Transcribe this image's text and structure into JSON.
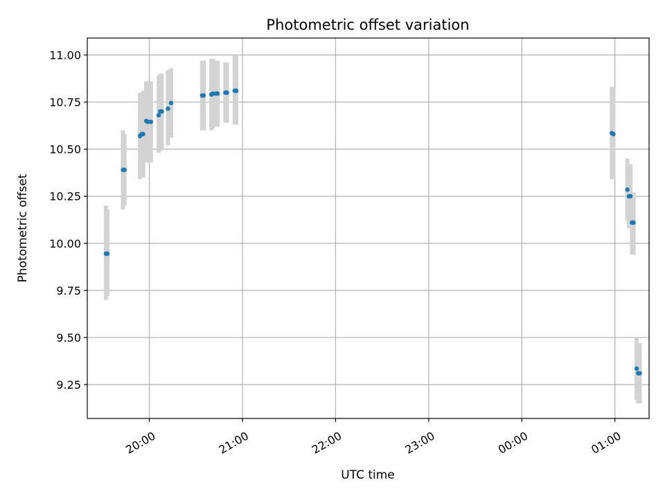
{
  "chart_data": {
    "type": "scatter",
    "title": "Photometric offset variation",
    "xlabel": "UTC time",
    "ylabel": "Photometric offset",
    "grid": true,
    "x_is_time": true,
    "xlim": [
      "19:20",
      "01:22"
    ],
    "ylim": [
      9.07,
      11.09
    ],
    "x_ticks": [
      {
        "t": "20:00",
        "label": "20:00"
      },
      {
        "t": "21:00",
        "label": "21:00"
      },
      {
        "t": "22:00",
        "label": "22:00"
      },
      {
        "t": "23:00",
        "label": "23:00"
      },
      {
        "t": "00:00",
        "label": "00:00"
      },
      {
        "t": "01:00",
        "label": "01:00"
      }
    ],
    "y_ticks": [
      {
        "value": 9.25,
        "label": "9.25"
      },
      {
        "value": 9.5,
        "label": "9.50"
      },
      {
        "value": 9.75,
        "label": "9.75"
      },
      {
        "value": 10.0,
        "label": "10.00"
      },
      {
        "value": 10.25,
        "label": "10.25"
      },
      {
        "value": 10.5,
        "label": "10.50"
      },
      {
        "value": 10.75,
        "label": "10.75"
      },
      {
        "value": 11.0,
        "label": "11.00"
      }
    ],
    "colors": {
      "points": "#1f77b4",
      "errorbars": "#d3d3d3",
      "grid": "#b0b0b0"
    },
    "points": [
      {
        "t": "19:32",
        "y": 9.945,
        "ylo": 9.7,
        "yhi": 10.2
      },
      {
        "t": "19:33",
        "y": 9.945,
        "ylo": 9.72,
        "yhi": 10.18
      },
      {
        "t": "19:43",
        "y": 10.39,
        "ylo": 10.18,
        "yhi": 10.6
      },
      {
        "t": "19:44",
        "y": 10.39,
        "ylo": 10.2,
        "yhi": 10.58
      },
      {
        "t": "19:54",
        "y": 10.57,
        "ylo": 10.34,
        "yhi": 10.8
      },
      {
        "t": "19:55",
        "y": 10.58,
        "ylo": 10.35,
        "yhi": 10.8
      },
      {
        "t": "19:56",
        "y": 10.58,
        "ylo": 10.35,
        "yhi": 10.81
      },
      {
        "t": "19:58",
        "y": 10.65,
        "ylo": 10.43,
        "yhi": 10.86
      },
      {
        "t": "19:59",
        "y": 10.645,
        "ylo": 10.43,
        "yhi": 10.86
      },
      {
        "t": "20:01",
        "y": 10.645,
        "ylo": 10.43,
        "yhi": 10.86
      },
      {
        "t": "20:06",
        "y": 10.68,
        "ylo": 10.48,
        "yhi": 10.89
      },
      {
        "t": "20:07",
        "y": 10.7,
        "ylo": 10.49,
        "yhi": 10.9
      },
      {
        "t": "20:08",
        "y": 10.7,
        "ylo": 10.5,
        "yhi": 10.9
      },
      {
        "t": "20:12",
        "y": 10.715,
        "ylo": 10.52,
        "yhi": 10.92
      },
      {
        "t": "20:14",
        "y": 10.745,
        "ylo": 10.56,
        "yhi": 10.93
      },
      {
        "t": "20:34",
        "y": 10.785,
        "ylo": 10.6,
        "yhi": 10.97
      },
      {
        "t": "20:35",
        "y": 10.785,
        "ylo": 10.6,
        "yhi": 10.97
      },
      {
        "t": "20:40",
        "y": 10.79,
        "ylo": 10.6,
        "yhi": 10.98
      },
      {
        "t": "20:41",
        "y": 10.795,
        "ylo": 10.61,
        "yhi": 10.98
      },
      {
        "t": "20:43",
        "y": 10.795,
        "ylo": 10.62,
        "yhi": 10.97
      },
      {
        "t": "20:44",
        "y": 10.795,
        "ylo": 10.62,
        "yhi": 10.97
      },
      {
        "t": "20:49",
        "y": 10.8,
        "ylo": 10.64,
        "yhi": 10.96
      },
      {
        "t": "20:50",
        "y": 10.8,
        "ylo": 10.64,
        "yhi": 10.96
      },
      {
        "t": "20:55",
        "y": 10.81,
        "ylo": 10.63,
        "yhi": 11.0
      },
      {
        "t": "20:56",
        "y": 10.81,
        "ylo": 10.63,
        "yhi": 11.0
      },
      {
        "t": "00:58",
        "y": 10.585,
        "ylo": 10.34,
        "yhi": 10.83
      },
      {
        "t": "00:59",
        "y": 10.58,
        "ylo": 10.35,
        "yhi": 10.82
      },
      {
        "t": "01:08",
        "y": 10.285,
        "ylo": 10.12,
        "yhi": 10.45
      },
      {
        "t": "01:09",
        "y": 10.25,
        "ylo": 10.08,
        "yhi": 10.42
      },
      {
        "t": "01:10",
        "y": 10.25,
        "ylo": 10.08,
        "yhi": 10.42
      },
      {
        "t": "01:11",
        "y": 10.11,
        "ylo": 9.94,
        "yhi": 10.27
      },
      {
        "t": "01:12",
        "y": 10.11,
        "ylo": 9.94,
        "yhi": 10.27
      },
      {
        "t": "01:14",
        "y": 9.335,
        "ylo": 9.17,
        "yhi": 9.5
      },
      {
        "t": "01:15",
        "y": 9.31,
        "ylo": 9.15,
        "yhi": 9.47
      },
      {
        "t": "01:16",
        "y": 9.31,
        "ylo": 9.15,
        "yhi": 9.47
      }
    ]
  }
}
